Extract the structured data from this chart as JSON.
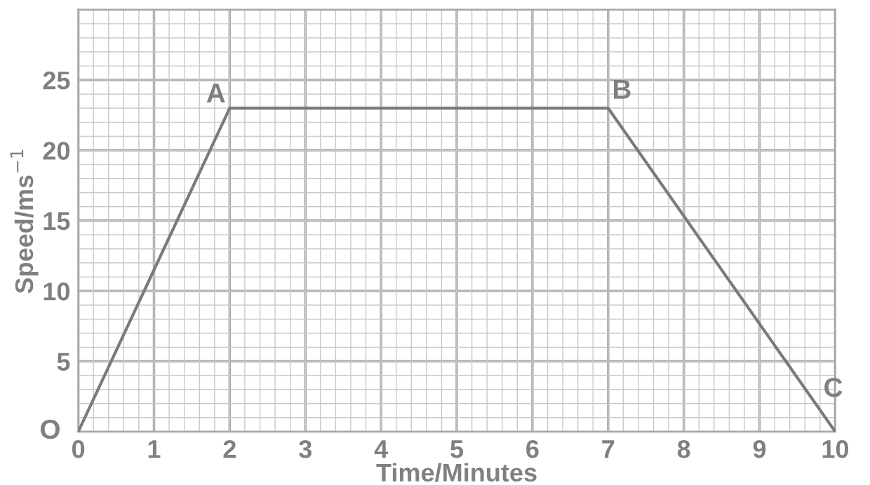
{
  "chart_data": {
    "type": "line",
    "xlabel": "Time/Minutes",
    "ylabel": "Speed/ms$^{−1}$",
    "x": [
      0,
      2,
      7,
      10
    ],
    "series": [
      {
        "color": "#7a7a7a",
        "values": [
          0,
          23,
          23,
          0
        ]
      }
    ],
    "xlim": [
      0,
      10
    ],
    "ylim": [
      0,
      30
    ],
    "xticks": [
      0,
      1,
      2,
      3,
      4,
      5,
      6,
      7,
      8,
      9,
      10
    ],
    "yticks": [
      5,
      10,
      15,
      20,
      25
    ],
    "grid": true,
    "marker": "none",
    "line_style": "solid",
    "annotations": [
      {
        "text": "O",
        "x": 0,
        "y": 0
      },
      {
        "text": "A",
        "x": 2,
        "y": 23
      },
      {
        "text": "B",
        "x": 7,
        "y": 23
      },
      {
        "text": "C",
        "x": 10,
        "y": 0
      }
    ]
  }
}
